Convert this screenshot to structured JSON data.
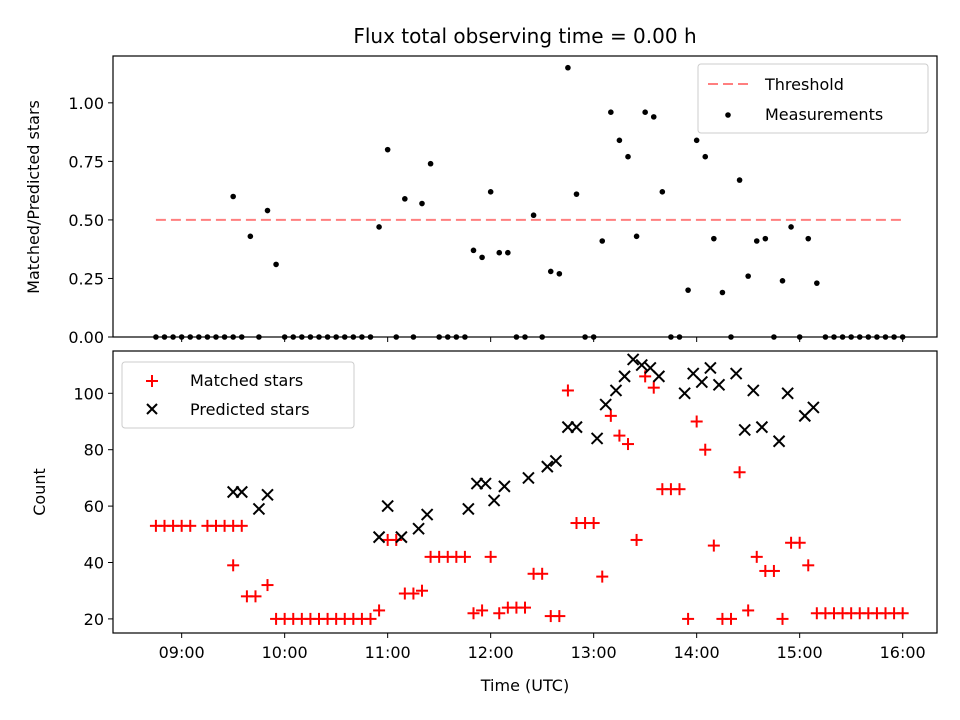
{
  "chart_data": [
    {
      "type": "scatter",
      "title": "Flux total observing time = 0.00 h",
      "xlabel": "",
      "ylabel": "Matched/Predicted stars",
      "xlim": [
        "08:20",
        "16:20"
      ],
      "ylim": [
        0,
        1.2
      ],
      "x_ticks": [
        "09:00",
        "10:00",
        "11:00",
        "12:00",
        "13:00",
        "14:00",
        "15:00",
        "16:00"
      ],
      "x_ticks_labeled": false,
      "y_ticks": [
        0.0,
        0.25,
        0.5,
        0.75,
        1.0
      ],
      "y_tick_labels": [
        "0.00",
        "0.25",
        "0.50",
        "0.75",
        "1.00"
      ],
      "legend_position": "top-right",
      "threshold": {
        "name": "Threshold",
        "value": 0.5,
        "x_start": "08:45",
        "x_end": "16:00",
        "color": "#ff7f7f",
        "style": "dashed"
      },
      "series": [
        {
          "name": "Measurements",
          "color": "#000000",
          "marker": "dot",
          "points": [
            [
              "08:45",
              0
            ],
            [
              "08:50",
              0
            ],
            [
              "08:55",
              0
            ],
            [
              "09:00",
              0
            ],
            [
              "09:05",
              0
            ],
            [
              "09:10",
              0
            ],
            [
              "09:15",
              0
            ],
            [
              "09:20",
              0
            ],
            [
              "09:25",
              0
            ],
            [
              "09:30",
              0
            ],
            [
              "09:35",
              0
            ],
            [
              "09:30",
              0.6
            ],
            [
              "09:40",
              0.43
            ],
            [
              "09:45",
              0
            ],
            [
              "09:50",
              0.54
            ],
            [
              "09:55",
              0.31
            ],
            [
              "10:00",
              0
            ],
            [
              "10:05",
              0
            ],
            [
              "10:10",
              0
            ],
            [
              "10:15",
              0
            ],
            [
              "10:20",
              0
            ],
            [
              "10:25",
              0
            ],
            [
              "10:30",
              0
            ],
            [
              "10:35",
              0
            ],
            [
              "10:40",
              0
            ],
            [
              "10:45",
              0
            ],
            [
              "10:50",
              0
            ],
            [
              "10:55",
              0.47
            ],
            [
              "11:00",
              0.8
            ],
            [
              "11:05",
              0
            ],
            [
              "11:10",
              0.59
            ],
            [
              "11:15",
              0
            ],
            [
              "11:20",
              0.57
            ],
            [
              "11:25",
              0.74
            ],
            [
              "11:30",
              0
            ],
            [
              "11:35",
              0
            ],
            [
              "11:40",
              0
            ],
            [
              "11:45",
              0
            ],
            [
              "11:50",
              0.37
            ],
            [
              "11:55",
              0.34
            ],
            [
              "12:00",
              0.62
            ],
            [
              "12:05",
              0.36
            ],
            [
              "12:10",
              0.36
            ],
            [
              "12:15",
              0
            ],
            [
              "12:20",
              0
            ],
            [
              "12:25",
              0.52
            ],
            [
              "12:30",
              0
            ],
            [
              "12:35",
              0.28
            ],
            [
              "12:40",
              0.27
            ],
            [
              "12:45",
              1.15
            ],
            [
              "12:50",
              0.61
            ],
            [
              "12:55",
              0
            ],
            [
              "13:00",
              0
            ],
            [
              "13:05",
              0.41
            ],
            [
              "13:10",
              0.96
            ],
            [
              "13:15",
              0.84
            ],
            [
              "13:20",
              0.77
            ],
            [
              "13:25",
              0.43
            ],
            [
              "13:30",
              0.96
            ],
            [
              "13:35",
              0.94
            ],
            [
              "13:40",
              0.62
            ],
            [
              "13:45",
              0
            ],
            [
              "13:50",
              0
            ],
            [
              "13:55",
              0.2
            ],
            [
              "14:00",
              0.84
            ],
            [
              "14:05",
              0.77
            ],
            [
              "14:10",
              0.42
            ],
            [
              "14:15",
              0.19
            ],
            [
              "14:20",
              0
            ],
            [
              "14:25",
              0.67
            ],
            [
              "14:30",
              0.26
            ],
            [
              "14:35",
              0.41
            ],
            [
              "14:40",
              0.42
            ],
            [
              "14:45",
              0
            ],
            [
              "14:50",
              0.24
            ],
            [
              "14:55",
              0.47
            ],
            [
              "15:00",
              0
            ],
            [
              "15:05",
              0.42
            ],
            [
              "15:10",
              0.23
            ],
            [
              "15:15",
              0
            ],
            [
              "15:20",
              0
            ],
            [
              "15:25",
              0
            ],
            [
              "15:30",
              0
            ],
            [
              "15:35",
              0
            ],
            [
              "15:40",
              0
            ],
            [
              "15:45",
              0
            ],
            [
              "15:50",
              0
            ],
            [
              "15:55",
              0
            ],
            [
              "16:00",
              0
            ]
          ]
        }
      ]
    },
    {
      "type": "scatter",
      "title": "",
      "xlabel": "Time (UTC)",
      "ylabel": "Count",
      "xlim": [
        "08:20",
        "16:20"
      ],
      "ylim": [
        15,
        115
      ],
      "x_ticks": [
        "09:00",
        "10:00",
        "11:00",
        "12:00",
        "13:00",
        "14:00",
        "15:00",
        "16:00"
      ],
      "x_tick_labels": [
        "09:00",
        "10:00",
        "11:00",
        "12:00",
        "13:00",
        "14:00",
        "15:00",
        "16:00"
      ],
      "y_ticks": [
        20,
        40,
        60,
        80,
        100
      ],
      "y_tick_labels": [
        "20",
        "40",
        "60",
        "80",
        "100"
      ],
      "legend_position": "top-left",
      "series": [
        {
          "name": "Matched stars",
          "color": "#ff0000",
          "marker": "plus",
          "points": [
            [
              "08:45",
              53
            ],
            [
              "08:50",
              53
            ],
            [
              "08:55",
              53
            ],
            [
              "09:00",
              53
            ],
            [
              "09:05",
              53
            ],
            [
              "09:15",
              53
            ],
            [
              "09:20",
              53
            ],
            [
              "09:25",
              53
            ],
            [
              "09:30",
              53
            ],
            [
              "09:35",
              53
            ],
            [
              "09:30",
              39
            ],
            [
              "09:38",
              28
            ],
            [
              "09:43",
              28
            ],
            [
              "09:50",
              32
            ],
            [
              "09:55",
              20
            ],
            [
              "10:00",
              20
            ],
            [
              "10:05",
              20
            ],
            [
              "10:10",
              20
            ],
            [
              "10:15",
              20
            ],
            [
              "10:20",
              20
            ],
            [
              "10:25",
              20
            ],
            [
              "10:30",
              20
            ],
            [
              "10:35",
              20
            ],
            [
              "10:40",
              20
            ],
            [
              "10:45",
              20
            ],
            [
              "10:50",
              20
            ],
            [
              "10:55",
              23
            ],
            [
              "11:00",
              48
            ],
            [
              "11:05",
              48
            ],
            [
              "11:10",
              29
            ],
            [
              "11:15",
              29
            ],
            [
              "11:20",
              30
            ],
            [
              "11:25",
              42
            ],
            [
              "11:30",
              42
            ],
            [
              "11:35",
              42
            ],
            [
              "11:40",
              42
            ],
            [
              "11:45",
              42
            ],
            [
              "11:50",
              22
            ],
            [
              "11:55",
              23
            ],
            [
              "12:00",
              42
            ],
            [
              "12:05",
              22
            ],
            [
              "12:10",
              24
            ],
            [
              "12:15",
              24
            ],
            [
              "12:20",
              24
            ],
            [
              "12:25",
              36
            ],
            [
              "12:30",
              36
            ],
            [
              "12:35",
              21
            ],
            [
              "12:40",
              21
            ],
            [
              "12:45",
              101
            ],
            [
              "12:50",
              54
            ],
            [
              "12:55",
              54
            ],
            [
              "13:00",
              54
            ],
            [
              "13:05",
              35
            ],
            [
              "13:10",
              92
            ],
            [
              "13:15",
              85
            ],
            [
              "13:20",
              82
            ],
            [
              "13:25",
              48
            ],
            [
              "13:30",
              106
            ],
            [
              "13:35",
              102
            ],
            [
              "13:40",
              66
            ],
            [
              "13:45",
              66
            ],
            [
              "13:50",
              66
            ],
            [
              "13:55",
              20
            ],
            [
              "14:00",
              90
            ],
            [
              "14:05",
              80
            ],
            [
              "14:10",
              46
            ],
            [
              "14:15",
              20
            ],
            [
              "14:20",
              20
            ],
            [
              "14:25",
              72
            ],
            [
              "14:30",
              23
            ],
            [
              "14:35",
              42
            ],
            [
              "14:40",
              37
            ],
            [
              "14:45",
              37
            ],
            [
              "14:50",
              20
            ],
            [
              "14:55",
              47
            ],
            [
              "15:00",
              47
            ],
            [
              "15:05",
              39
            ],
            [
              "15:10",
              22
            ],
            [
              "15:15",
              22
            ],
            [
              "15:20",
              22
            ],
            [
              "15:25",
              22
            ],
            [
              "15:30",
              22
            ],
            [
              "15:35",
              22
            ],
            [
              "15:40",
              22
            ],
            [
              "15:45",
              22
            ],
            [
              "15:50",
              22
            ],
            [
              "15:55",
              22
            ],
            [
              "16:00",
              22
            ]
          ]
        },
        {
          "name": "Predicted stars",
          "color": "#000000",
          "marker": "cross",
          "points": [
            [
              "09:30",
              65
            ],
            [
              "09:35",
              65
            ],
            [
              "09:45",
              59
            ],
            [
              "09:50",
              64
            ],
            [
              "10:55",
              49
            ],
            [
              "11:00",
              60
            ],
            [
              "11:08",
              49
            ],
            [
              "11:18",
              52
            ],
            [
              "11:23",
              57
            ],
            [
              "11:47",
              59
            ],
            [
              "11:52",
              68
            ],
            [
              "11:57",
              68
            ],
            [
              "12:02",
              62
            ],
            [
              "12:08",
              67
            ],
            [
              "12:22",
              70
            ],
            [
              "12:33",
              74
            ],
            [
              "12:38",
              76
            ],
            [
              "12:45",
              88
            ],
            [
              "12:50",
              88
            ],
            [
              "13:02",
              84
            ],
            [
              "13:07",
              96
            ],
            [
              "13:13",
              101
            ],
            [
              "13:18",
              106
            ],
            [
              "13:23",
              112
            ],
            [
              "13:28",
              110
            ],
            [
              "13:33",
              109
            ],
            [
              "13:38",
              106
            ],
            [
              "13:53",
              100
            ],
            [
              "13:58",
              107
            ],
            [
              "14:03",
              104
            ],
            [
              "14:08",
              109
            ],
            [
              "14:13",
              103
            ],
            [
              "14:23",
              107
            ],
            [
              "14:28",
              87
            ],
            [
              "14:33",
              101
            ],
            [
              "14:38",
              88
            ],
            [
              "14:48",
              83
            ],
            [
              "14:53",
              100
            ],
            [
              "15:03",
              92
            ],
            [
              "15:08",
              95
            ]
          ]
        }
      ]
    }
  ]
}
